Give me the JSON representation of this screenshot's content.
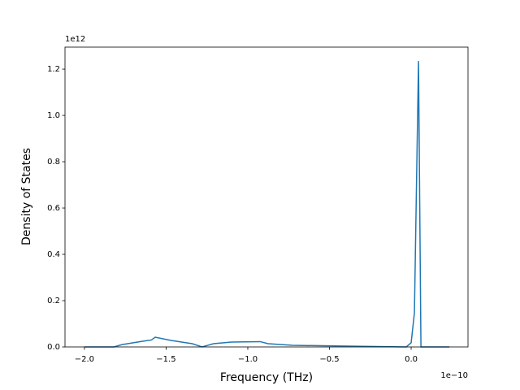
{
  "chart_data": {
    "type": "line",
    "xlabel": "Frequency (THz)",
    "ylabel": "Density of States",
    "x_offset_label": "1e−10",
    "y_offset_label": "1e12",
    "x": [
      -2.0,
      -1.82,
      -1.77,
      -1.64,
      -1.59,
      -1.567,
      -1.47,
      -1.34,
      -1.28,
      -1.21,
      -1.1,
      -0.925,
      -0.876,
      -0.726,
      -0.428,
      -0.03,
      0.0,
      0.02,
      0.045,
      0.06,
      0.234
    ],
    "series": [
      {
        "color": "#1f77b4",
        "values": [
          0,
          0,
          0.01,
          0.025,
          0.03,
          0.042,
          0.028,
          0.014,
          0,
          0.014,
          0.021,
          0.023,
          0.014,
          0.007,
          0.004,
          0,
          0.018,
          0.147,
          1.235,
          0,
          0
        ]
      }
    ],
    "xlim": [
      -2.119,
      0.348
    ],
    "ylim": [
      0,
      1.295
    ],
    "xticks": [
      {
        "value": -2.0,
        "label": "−2.0"
      },
      {
        "value": -1.5,
        "label": "−1.5"
      },
      {
        "value": -1.0,
        "label": "−1.0"
      },
      {
        "value": -0.5,
        "label": "−0.5"
      },
      {
        "value": 0.0,
        "label": "0.0"
      }
    ],
    "yticks": [
      {
        "value": 0.0,
        "label": "0.0"
      },
      0.2,
      0.4,
      0.6,
      0.8,
      {
        "value": 1.0,
        "label": "1.0"
      },
      1.2
    ],
    "grid": false
  }
}
